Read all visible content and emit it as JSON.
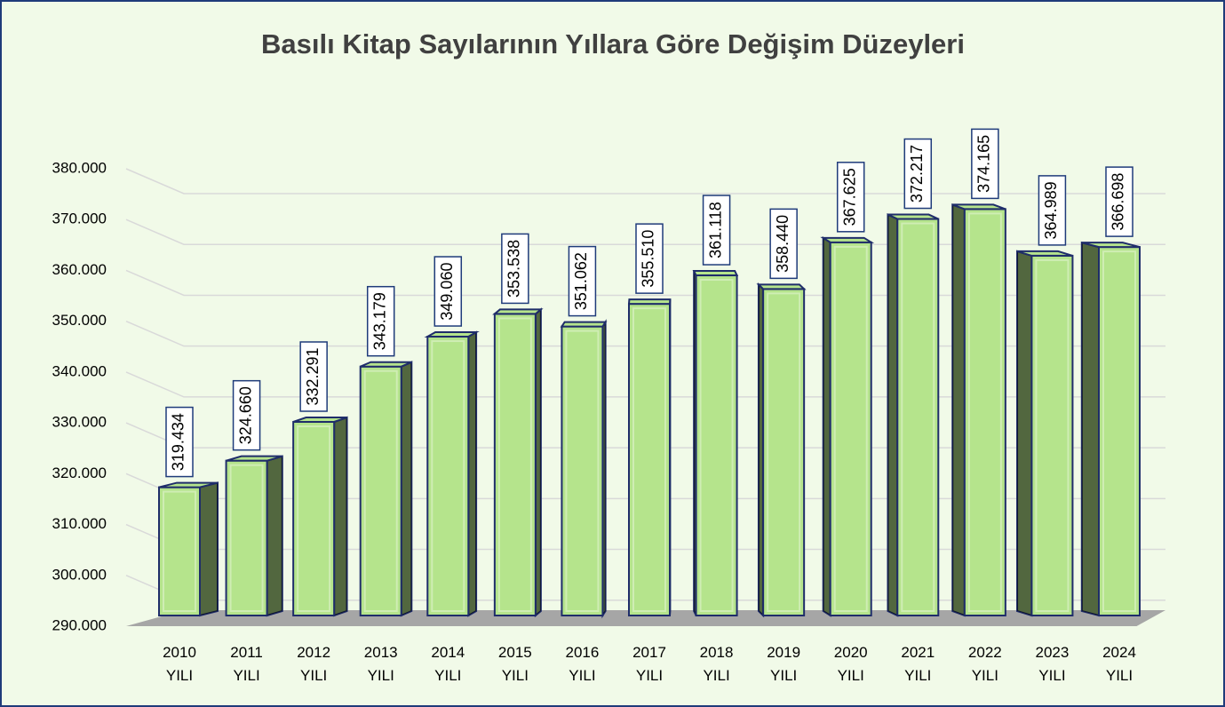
{
  "chart_data": {
    "type": "bar3d",
    "title": "Basılı Kitap Sayılarının Yıllara Göre Değişim Düzeyleri",
    "categories": [
      "2010 YILI",
      "2011 YILI",
      "2012 YILI",
      "2013 YILI",
      "2014 YILI",
      "2015 YILI",
      "2016 YILI",
      "2017 YILI",
      "2018 YILI",
      "2019 YILI",
      "2020 YILI",
      "2021 YILI",
      "2022 YILI",
      "2023 YILI",
      "2024 YILI"
    ],
    "values": [
      319434,
      324660,
      332291,
      343179,
      349060,
      353538,
      351062,
      355510,
      361118,
      358440,
      367625,
      372217,
      374165,
      364989,
      366698
    ],
    "value_labels": [
      "319.434",
      "324.660",
      "332.291",
      "343.179",
      "349.060",
      "353.538",
      "351.062",
      "355.510",
      "361.118",
      "358.440",
      "367.625",
      "372.217",
      "374.165",
      "364.989",
      "366.698"
    ],
    "color": "#b5e48c",
    "ylim": [
      290000,
      380000
    ],
    "yticks": [
      {
        "value": 290000,
        "label": "290.000"
      },
      {
        "value": 300000,
        "label": "300.000"
      },
      {
        "value": 310000,
        "label": "310.000"
      },
      {
        "value": 320000,
        "label": "320.000"
      },
      {
        "value": 330000,
        "label": "330.000"
      },
      {
        "value": 340000,
        "label": "340.000"
      },
      {
        "value": 350000,
        "label": "350.000"
      },
      {
        "value": 360000,
        "label": "360.000"
      },
      {
        "value": 370000,
        "label": "370.000"
      },
      {
        "value": 380000,
        "label": "380.000"
      }
    ],
    "grid": true
  }
}
